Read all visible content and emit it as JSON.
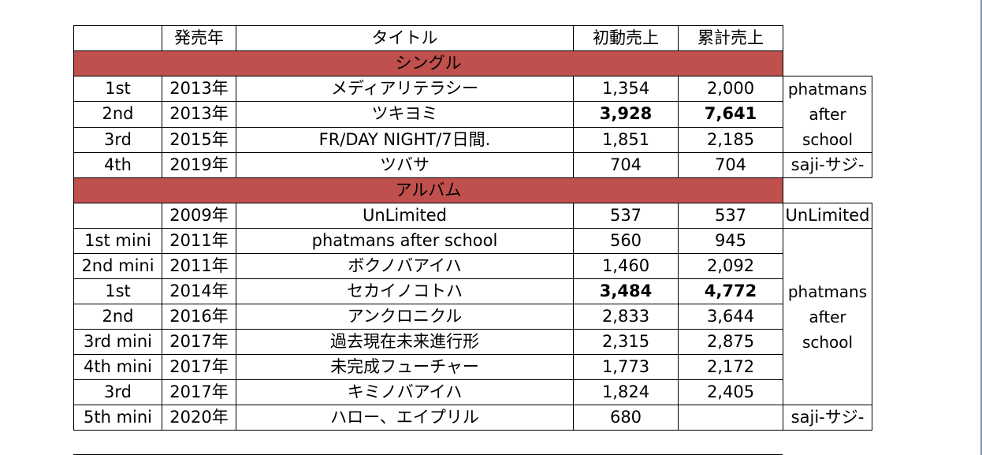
{
  "header": {
    "col0": "",
    "col1": "発売年",
    "col2": "タイトル",
    "col3": "初動売上",
    "col4": "累計売上"
  },
  "singles": {
    "section_label": "シングル",
    "rows": [
      {
        "num": "1st",
        "year": "2013年",
        "title": "メディアリテラシー",
        "first": "1,354",
        "total": "2,000"
      },
      {
        "num": "2nd",
        "year": "2013年",
        "title": "ツキヨミ",
        "first": "3,928",
        "total": "7,641"
      },
      {
        "num": "3rd",
        "year": "2015年",
        "title": "FR/DAY NIGHT/7日間.",
        "first": "1,851",
        "total": "2,185"
      },
      {
        "num": "4th",
        "year": "2019年",
        "title": "ツバサ",
        "first": "704",
        "total": "704"
      }
    ],
    "credit_group": "phatmans after school",
    "credit_last": "saji-サジ-"
  },
  "albums": {
    "section_label": "アルバム",
    "rows": [
      {
        "num": "",
        "year": "2009年",
        "title": "UnLimited",
        "first": "537",
        "total": "537"
      },
      {
        "num": "1st mini",
        "year": "2011年",
        "title": "phatmans after school",
        "first": "560",
        "total": "945"
      },
      {
        "num": "2nd mini",
        "year": "2011年",
        "title": "ボクノバアイハ",
        "first": "1,460",
        "total": "2,092"
      },
      {
        "num": "1st",
        "year": "2014年",
        "title": "セカイノコトハ",
        "first": "3,484",
        "total": "4,772"
      },
      {
        "num": "2nd",
        "year": "2016年",
        "title": "アンクロニクル",
        "first": "2,833",
        "total": "3,644"
      },
      {
        "num": "3rd mini",
        "year": "2017年",
        "title": "過去現在未来進行形",
        "first": "2,315",
        "total": "2,875"
      },
      {
        "num": "4th mini",
        "year": "2017年",
        "title": "未完成フューチャー",
        "first": "1,773",
        "total": "2,172"
      },
      {
        "num": "3rd",
        "year": "2017年",
        "title": "キミノバアイハ",
        "first": "1,824",
        "total": "2,405"
      },
      {
        "num": "5th mini",
        "year": "2020年",
        "title": "ハロー、エイプリル",
        "first": "680",
        "total": ""
      }
    ],
    "credit_first": "UnLimited",
    "credit_group": "phatmans after school",
    "credit_last": "saji-サジ-"
  },
  "colors": {
    "section_fill": "#c0504d",
    "grid_line": "#000000"
  }
}
